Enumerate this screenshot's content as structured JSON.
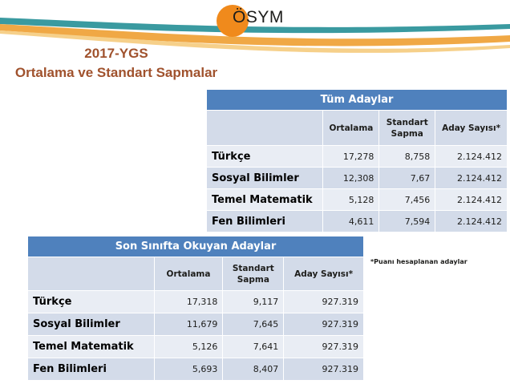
{
  "logo": {
    "text": "ÖSYM",
    "color": "#f08a1c"
  },
  "title": {
    "line1": "2017-YGS",
    "line2": "Ortalama ve Standart Sapmalar"
  },
  "colors": {
    "header_blue": "#4f81bd",
    "row_dark": "#d3dbe9",
    "row_light": "#e9edf4",
    "title_brown": "#a0522d",
    "swoosh_teal": "#3a9aa0"
  },
  "table_all": {
    "title": "Tüm Adaylar",
    "columns": [
      "Ortalama",
      "Standart Sapma",
      "Aday Sayısı*"
    ],
    "rows": [
      {
        "subject": "Türkçe",
        "mean": "17,278",
        "sd": "8,758",
        "count": "2.124.412"
      },
      {
        "subject": "Sosyal Bilimler",
        "mean": "12,308",
        "sd": "7,67",
        "count": "2.124.412"
      },
      {
        "subject": "Temel Matematik",
        "mean": "5,128",
        "sd": "7,456",
        "count": "2.124.412"
      },
      {
        "subject": "Fen Bilimleri",
        "mean": "4,611",
        "sd": "7,594",
        "count": "2.124.412"
      }
    ]
  },
  "table_son": {
    "title": "Son Sınıfta Okuyan Adaylar",
    "columns": [
      "Ortalama",
      "Standart Sapma",
      "Aday Sayısı*"
    ],
    "rows": [
      {
        "subject": "Türkçe",
        "mean": "17,318",
        "sd": "9,117",
        "count": "927.319"
      },
      {
        "subject": "Sosyal Bilimler",
        "mean": "11,679",
        "sd": "7,645",
        "count": "927.319"
      },
      {
        "subject": "Temel Matematik",
        "mean": "5,126",
        "sd": "7,641",
        "count": "927.319"
      },
      {
        "subject": "Fen Bilimleri",
        "mean": "5,693",
        "sd": "8,407",
        "count": "927.319"
      }
    ]
  },
  "note": "*Puanı hesaplanan adaylar"
}
